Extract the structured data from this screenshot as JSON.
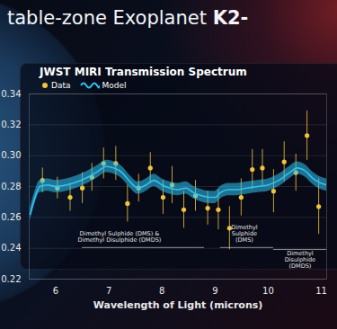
{
  "chart_data": {
    "type": "line",
    "title": "table-zone Exoplanet K2-",
    "subtitle": "JWST MIRI Transmission Spectrum",
    "x_label": "Wavelength of Light (microns)",
    "xlim": [
      5.5,
      11.1
    ],
    "xticks": [
      6,
      7,
      8,
      9,
      10,
      11
    ],
    "ylim": [
      0.22,
      0.34
    ],
    "yticks": [
      0.22,
      0.24,
      0.26,
      0.28,
      {
        "value": 0.3,
        "label": "0.30"
      },
      0.32,
      0.34
    ],
    "grid": true,
    "legend": "top-left",
    "series": [
      {
        "name": "Data",
        "type": "scatter",
        "color": "#f2c43d",
        "marker": "circle",
        "x": [
          5.75,
          6.03,
          6.27,
          6.5,
          6.68,
          6.9,
          7.13,
          7.35,
          7.56,
          7.78,
          8.02,
          8.19,
          8.41,
          8.63,
          8.86,
          9.06,
          9.27,
          9.49,
          9.7,
          9.89,
          10.1,
          10.3,
          10.52,
          10.73,
          10.95
        ],
        "values": [
          0.284,
          0.279,
          0.273,
          0.279,
          0.286,
          0.295,
          0.295,
          0.269,
          0.279,
          0.292,
          0.273,
          0.281,
          0.265,
          0.274,
          0.266,
          0.265,
          0.253,
          0.273,
          0.291,
          0.292,
          0.277,
          0.296,
          0.289,
          0.313,
          0.267
        ],
        "errors": [
          0.008,
          0.007,
          0.009,
          0.01,
          0.009,
          0.01,
          0.011,
          0.012,
          0.009,
          0.01,
          0.011,
          0.012,
          0.012,
          0.01,
          0.011,
          0.013,
          0.014,
          0.012,
          0.013,
          0.012,
          0.014,
          0.013,
          0.012,
          0.016,
          0.018
        ]
      },
      {
        "name": "Model",
        "type": "line",
        "color": "#2fc4f2",
        "line_style": "solid",
        "x": [
          5.52,
          5.6,
          5.7,
          5.85,
          6.0,
          6.2,
          6.4,
          6.6,
          6.8,
          6.95,
          7.1,
          7.25,
          7.4,
          7.55,
          7.7,
          7.85,
          8.0,
          8.15,
          8.3,
          8.45,
          8.6,
          8.75,
          8.9,
          9.0,
          9.1,
          9.25,
          9.4,
          9.6,
          9.8,
          10.0,
          10.2,
          10.4,
          10.55,
          10.7,
          10.85,
          11.0,
          11.1
        ],
        "values": [
          0.262,
          0.272,
          0.28,
          0.281,
          0.28,
          0.281,
          0.283,
          0.286,
          0.29,
          0.293,
          0.292,
          0.289,
          0.283,
          0.279,
          0.281,
          0.284,
          0.281,
          0.279,
          0.278,
          0.279,
          0.276,
          0.274,
          0.273,
          0.273,
          0.276,
          0.278,
          0.278,
          0.279,
          0.28,
          0.281,
          0.284,
          0.289,
          0.292,
          0.29,
          0.285,
          0.282,
          0.281
        ],
        "lower": [
          0.258,
          0.268,
          0.276,
          0.277,
          0.276,
          0.277,
          0.279,
          0.282,
          0.286,
          0.289,
          0.288,
          0.285,
          0.279,
          0.275,
          0.277,
          0.28,
          0.277,
          0.275,
          0.274,
          0.275,
          0.272,
          0.27,
          0.269,
          0.269,
          0.272,
          0.274,
          0.274,
          0.275,
          0.276,
          0.277,
          0.28,
          0.285,
          0.288,
          0.286,
          0.281,
          0.278,
          0.277
        ],
        "upper": [
          0.266,
          0.276,
          0.284,
          0.285,
          0.284,
          0.285,
          0.287,
          0.29,
          0.294,
          0.297,
          0.296,
          0.293,
          0.287,
          0.283,
          0.285,
          0.288,
          0.285,
          0.283,
          0.282,
          0.283,
          0.28,
          0.278,
          0.277,
          0.277,
          0.28,
          0.282,
          0.282,
          0.283,
          0.284,
          0.285,
          0.288,
          0.293,
          0.296,
          0.294,
          0.289,
          0.286,
          0.285
        ]
      }
    ],
    "annotations": [
      {
        "text": [
          "Dimethyl Sulphide (DMS) &",
          "Dimethyl Disulphide (DMDS)"
        ],
        "x": 7.2,
        "y": 0.2475,
        "underline_x": [
          6.5,
          8.8
        ],
        "underline_y": 0.2405
      },
      {
        "text": [
          "Dimethyl",
          "Sulphide",
          "(DMS)"
        ],
        "x": 9.55,
        "y": 0.2495,
        "underline_x": [
          9.1,
          10.1
        ],
        "underline_y": 0.2405
      },
      {
        "text": [
          "Dimethyl",
          "Disulphide",
          "(DMDS)"
        ],
        "x": 10.6,
        "y": 0.2325,
        "underline_x": [
          10.1,
          11.1
        ],
        "underline_y": 0.2392
      }
    ]
  }
}
